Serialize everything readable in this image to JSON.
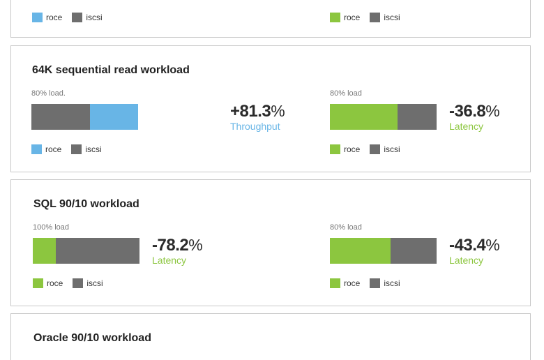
{
  "colors": {
    "iscsi": "#6e6e6e",
    "roce_blue": "#68b5e6",
    "roce_green": "#8cc63f"
  },
  "chart_data": [
    {
      "type": "bar",
      "title": "",
      "stacked": true,
      "categories": [
        ""
      ],
      "series": [
        {
          "name": "roce",
          "values": [
            null
          ]
        },
        {
          "name": "iscsi",
          "values": [
            null
          ]
        }
      ],
      "summary": {
        "change": "",
        "metric": ""
      },
      "legend": [
        "roce",
        "iscsi"
      ],
      "roce_color": "#68b5e6"
    },
    {
      "type": "bar",
      "title": "",
      "stacked": true,
      "categories": [
        ""
      ],
      "series": [
        {
          "name": "roce",
          "values": [
            null
          ]
        },
        {
          "name": "iscsi",
          "values": [
            null
          ]
        }
      ],
      "summary": {
        "change": "",
        "metric": ""
      },
      "legend": [
        "roce",
        "iscsi"
      ],
      "roce_color": "#8cc63f"
    },
    {
      "type": "bar",
      "title": "64K sequential read workload",
      "stacked": true,
      "categories": [
        "80% load."
      ],
      "series": [
        {
          "name": "iscsi",
          "values": [
            100
          ]
        },
        {
          "name": "roce",
          "values": [
            81.3
          ]
        }
      ],
      "summary": {
        "change": "+81.3%",
        "metric": "Throughput"
      },
      "legend": [
        "roce",
        "iscsi"
      ],
      "roce_color": "#68b5e6"
    },
    {
      "type": "bar",
      "title": "64K sequential read workload",
      "stacked": true,
      "categories": [
        "80% load"
      ],
      "series": [
        {
          "name": "roce",
          "values": [
            63.2
          ]
        },
        {
          "name": "iscsi",
          "values": [
            36.8
          ]
        }
      ],
      "summary": {
        "change": "-36.8%",
        "metric": "Latency"
      },
      "legend": [
        "roce",
        "iscsi"
      ],
      "roce_color": "#8cc63f"
    },
    {
      "type": "bar",
      "title": "SQL 90/10 workload",
      "stacked": true,
      "categories": [
        "100% load"
      ],
      "series": [
        {
          "name": "roce",
          "values": [
            21.8
          ]
        },
        {
          "name": "iscsi",
          "values": [
            78.2
          ]
        }
      ],
      "summary": {
        "change": "-78.2%",
        "metric": "Latency"
      },
      "legend": [
        "roce",
        "iscsi"
      ],
      "roce_color": "#8cc63f"
    },
    {
      "type": "bar",
      "title": "SQL 90/10 workload",
      "stacked": true,
      "categories": [
        "80% load"
      ],
      "series": [
        {
          "name": "roce",
          "values": [
            56.6
          ]
        },
        {
          "name": "iscsi",
          "values": [
            43.4
          ]
        }
      ],
      "summary": {
        "change": "-43.4%",
        "metric": "Latency"
      },
      "legend": [
        "roce",
        "iscsi"
      ],
      "roce_color": "#8cc63f"
    },
    {
      "type": "bar",
      "title": "Oracle 90/10 workload",
      "stacked": true,
      "categories": [
        ""
      ],
      "series": [],
      "summary": {
        "change": "",
        "metric": ""
      },
      "legend": [],
      "roce_color": "#8cc63f"
    }
  ],
  "cards": [
    {
      "title": ""
    },
    {
      "title": "64K sequential read workload"
    },
    {
      "title": "SQL 90/10 workload"
    },
    {
      "title": "Oracle 90/10 workload"
    }
  ]
}
